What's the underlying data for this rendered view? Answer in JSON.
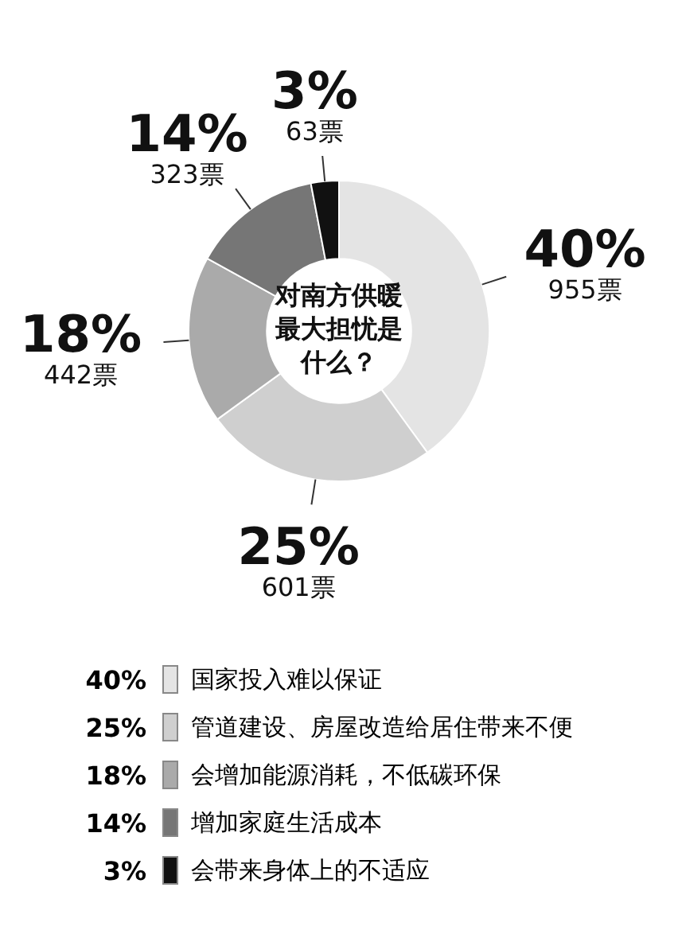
{
  "chart_data": {
    "type": "donut",
    "title": "对南方供暖最大担忧是什么？",
    "categories": [
      "国家投入难以保证",
      "管道建设、房屋改造给居住带来不便",
      "会增加能源消耗，不低碳环保",
      "增加家庭生活成本",
      "会带来身体上的不适应"
    ],
    "values": [
      40,
      25,
      18,
      14,
      3
    ],
    "colors": [
      "#e4e4e4",
      "#cfcfcf",
      "#aaaaaa",
      "#767676",
      "#111111"
    ],
    "value_labels": [
      "40%",
      "25%",
      "18%",
      "14%",
      "3%"
    ],
    "annotations": [
      "955票",
      "601票",
      "442票",
      "323票",
      "63票"
    ],
    "legend": "bottom"
  }
}
